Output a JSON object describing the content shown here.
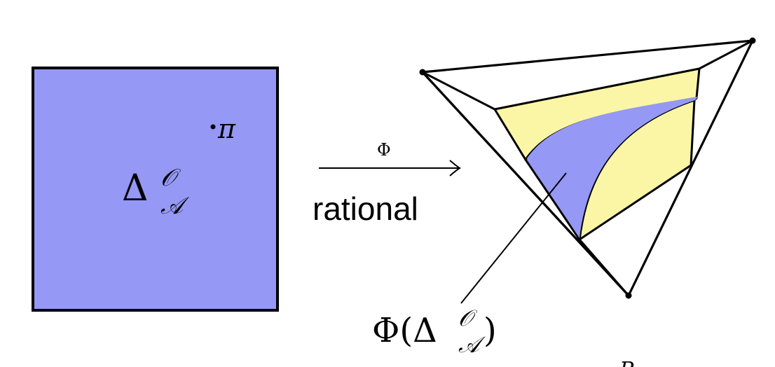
{
  "colors": {
    "blue": "#9598f5",
    "yellow": "#faf6a6",
    "stroke": "#000000",
    "background": "#ffffff"
  },
  "square": {
    "symbol": "Δ",
    "sup": "𝒪",
    "sub": "𝒜",
    "point": "π"
  },
  "arrow": {
    "label": "Φ",
    "caption": "rational"
  },
  "image_label": {
    "prefix": "Φ(Δ",
    "sup": "𝒪",
    "sub": "𝒜",
    "suffix": ")"
  },
  "clipped_label": "P"
}
